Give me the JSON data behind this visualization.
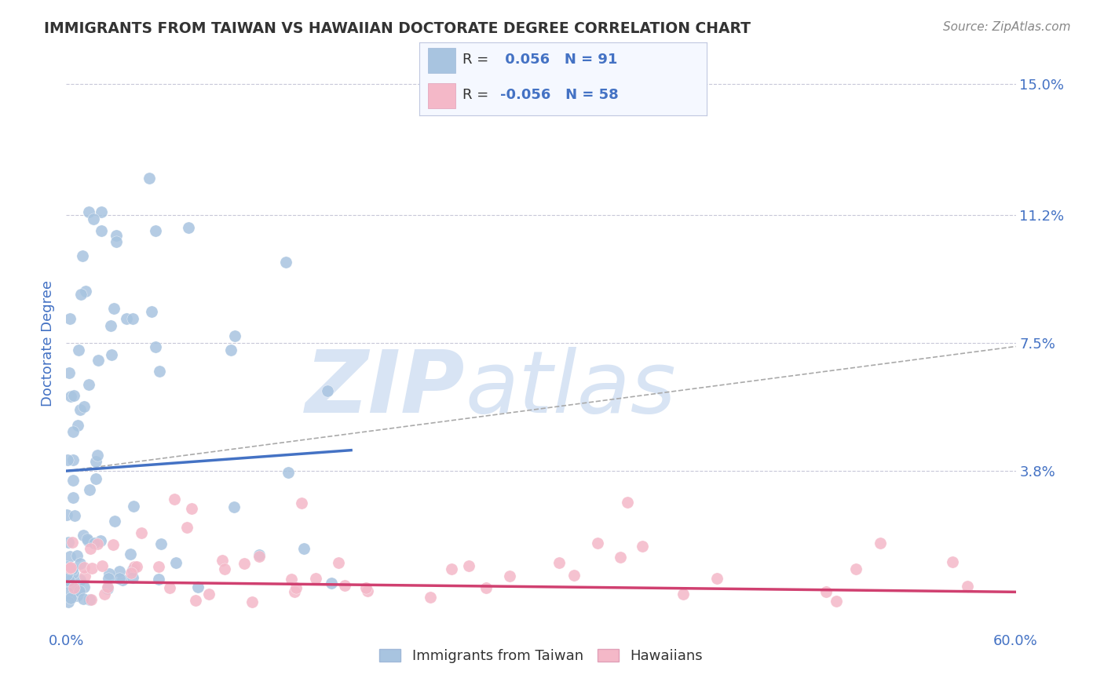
{
  "title": "IMMIGRANTS FROM TAIWAN VS HAWAIIAN DOCTORATE DEGREE CORRELATION CHART",
  "source_text": "Source: ZipAtlas.com",
  "ylabel": "Doctorate Degree",
  "x_min": 0.0,
  "x_max": 0.6,
  "y_min": -0.008,
  "y_max": 0.158,
  "y_ticks": [
    0.038,
    0.075,
    0.112,
    0.15
  ],
  "y_tick_labels": [
    "3.8%",
    "7.5%",
    "11.2%",
    "15.0%"
  ],
  "x_tick_left": "0.0%",
  "x_tick_right": "60.0%",
  "series1_label": "Immigrants from Taiwan",
  "series1_R": 0.056,
  "series1_N": 91,
  "series1_color": "#a8c4e0",
  "series1_trend_color": "#4472c4",
  "series2_label": "Hawaiians",
  "series2_R": -0.056,
  "series2_N": 58,
  "series2_color": "#f4b8c8",
  "series2_trend_color": "#d04070",
  "background_color": "#ffffff",
  "grid_color": "#c8c8d8",
  "title_color": "#333333",
  "axis_tick_color": "#4472c4",
  "ylabel_color": "#4472c4",
  "watermark_zip": "ZIP",
  "watermark_atlas": "atlas",
  "watermark_color": "#d8e4f4",
  "legend_bg": "#f5f8ff",
  "legend_border": "#c0c8e0",
  "legend_text_black": "#333333",
  "legend_text_blue": "#4472c4",
  "source_color": "#888888"
}
